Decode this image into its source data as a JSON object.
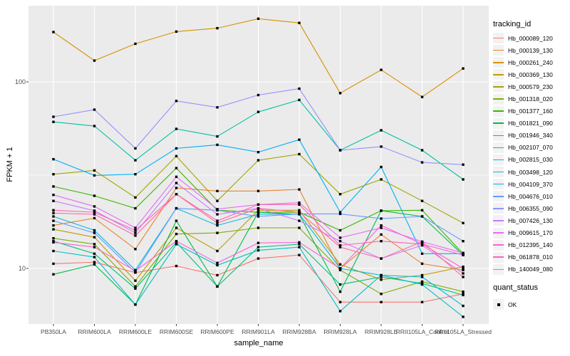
{
  "figure": {
    "y_axis_title": "FPKM + 1",
    "x_axis_title": "sample_name",
    "legend": {
      "tracking_title": "tracking_id",
      "quant_title": "quant_status",
      "quant_ok_label": "OK"
    }
  },
  "style_colors": {
    "panel_background": "#EBEBEB",
    "gridline": "#FFFFFF",
    "tick_mark": "#333333",
    "tick_text": "#4D4D4D",
    "point_marker": "#000000",
    "legend_key_background": "#F2F2F2"
  },
  "chart_data": {
    "type": "line",
    "title": "",
    "xlabel": "sample_name",
    "ylabel": "FPKM + 1",
    "y_scale": "log10",
    "ylim": [
      5,
      250
    ],
    "y_tick_values": [
      100,
      10
    ],
    "y_major_gridlines": [
      100,
      10
    ],
    "y_minor_gridlines": [
      31.6
    ],
    "grid": true,
    "legend_position": "right",
    "point_marker": "black-filled-square",
    "quant_status_legend": [
      {
        "label": "OK",
        "marker": "black-filled-square"
      }
    ],
    "categories": [
      "PB350LA",
      "RRIM600LA",
      "RRIM600LE",
      "RRIM600SE",
      "RRIM600PE",
      "RRIM901LA",
      "RRIM928BA",
      "RRIM928LA",
      "RRIM928LE",
      "RRII105LA_Control",
      "RRII105LA_Stressed"
    ],
    "series": [
      {
        "name": "Hb_000089_120",
        "color": "#F8766D",
        "values": [
          10.6,
          10.8,
          9.5,
          10.3,
          9.2,
          11.3,
          11.8,
          6.6,
          6.6,
          6.6,
          7.3
        ]
      },
      {
        "name": "Hb_000139_130",
        "color": "#EA8331",
        "values": [
          17,
          18.6,
          12.7,
          27,
          26,
          26,
          26.5,
          10,
          15.2,
          10.6,
          9.8
        ]
      },
      {
        "name": "Hb_000261_240",
        "color": "#D89000",
        "values": [
          185,
          130,
          160,
          186,
          194,
          218,
          207,
          87,
          116,
          83,
          118
        ]
      },
      {
        "name": "Hb_000369_130",
        "color": "#C09B00",
        "values": [
          16.2,
          14.7,
          8.6,
          16.5,
          12.4,
          20.5,
          20.5,
          10.5,
          8.7,
          9.2,
          10.2
        ]
      },
      {
        "name": "Hb_000579_230",
        "color": "#A3A500",
        "values": [
          32,
          33.5,
          24,
          40,
          23,
          38,
          41,
          25,
          30,
          23,
          17.5
        ]
      },
      {
        "name": "Hb_001318_020",
        "color": "#7CAE00",
        "values": [
          14.5,
          13.5,
          8,
          15.3,
          15.5,
          16.5,
          16.5,
          9.8,
          7.3,
          8.5,
          7.5
        ]
      },
      {
        "name": "Hb_001377_160",
        "color": "#39B600",
        "values": [
          27.5,
          24.5,
          21,
          34.5,
          20.5,
          20,
          20,
          16,
          20.4,
          20.5,
          12
        ]
      },
      {
        "name": "Hb_001821_090",
        "color": "#00BB4E",
        "values": [
          9.3,
          10.5,
          6.4,
          18,
          8,
          20,
          19.5,
          7.5,
          20.4,
          19,
          11.8
        ]
      },
      {
        "name": "Hb_001946_340",
        "color": "#00BF7D",
        "values": [
          14,
          12,
          7.8,
          13.8,
          8,
          13,
          13.5,
          8.2,
          9,
          8.3,
          7.2
        ]
      },
      {
        "name": "Hb_002107_070",
        "color": "#00C1A3",
        "values": [
          61,
          58,
          38,
          56,
          51,
          69,
          80,
          43,
          55,
          43,
          30
        ]
      },
      {
        "name": "Hb_002815_030",
        "color": "#00BFC4",
        "values": [
          12.4,
          11.5,
          6.4,
          13.5,
          10.4,
          12.5,
          13,
          5.9,
          9.2,
          8.2,
          5.5
        ]
      },
      {
        "name": "Hb_003498_120",
        "color": "#00BAE0",
        "values": [
          19,
          16,
          9.8,
          21,
          17,
          19.5,
          19.6,
          10,
          9.2,
          9,
          6.3
        ]
      },
      {
        "name": "Hb_004109_370",
        "color": "#00B0F6",
        "values": [
          38.5,
          31.5,
          32,
          44,
          46,
          42,
          49,
          20,
          35,
          12,
          12
        ]
      },
      {
        "name": "Hb_004676_010",
        "color": "#619CFF",
        "values": [
          18,
          15.5,
          9.5,
          21,
          20.5,
          19,
          19.6,
          19.6,
          18.5,
          19,
          14
        ]
      },
      {
        "name": "Hb_006355_090",
        "color": "#9590FF",
        "values": [
          65,
          71,
          44,
          79,
          73,
          85,
          92,
          43,
          45,
          37,
          36
        ]
      },
      {
        "name": "Hb_007426_130",
        "color": "#C77CFF",
        "values": [
          23,
          20.4,
          15.5,
          28.7,
          19.5,
          21,
          18,
          14,
          11.3,
          13.3,
          9.4
        ]
      },
      {
        "name": "Hb_009615_170",
        "color": "#E76BF3",
        "values": [
          24.8,
          21.5,
          16.5,
          31,
          20.8,
          22,
          22.5,
          14.6,
          16.5,
          13.9,
          12.1
        ]
      },
      {
        "name": "Hb_012395_140",
        "color": "#FA62DB",
        "values": [
          13.8,
          13,
          9.7,
          14,
          10.7,
          13.7,
          13.8,
          10,
          17,
          13.5,
          11.8
        ]
      },
      {
        "name": "Hb_061878_010",
        "color": "#FF62BC",
        "values": [
          20.5,
          20,
          16,
          25,
          18,
          22,
          22,
          13.3,
          14,
          13.5,
          10
        ]
      },
      {
        "name": "Hb_140049_080",
        "color": "#FF6A98",
        "values": [
          19.8,
          19.5,
          15,
          25,
          17.5,
          21,
          20,
          13,
          11.3,
          13.9,
          9
        ]
      }
    ]
  }
}
